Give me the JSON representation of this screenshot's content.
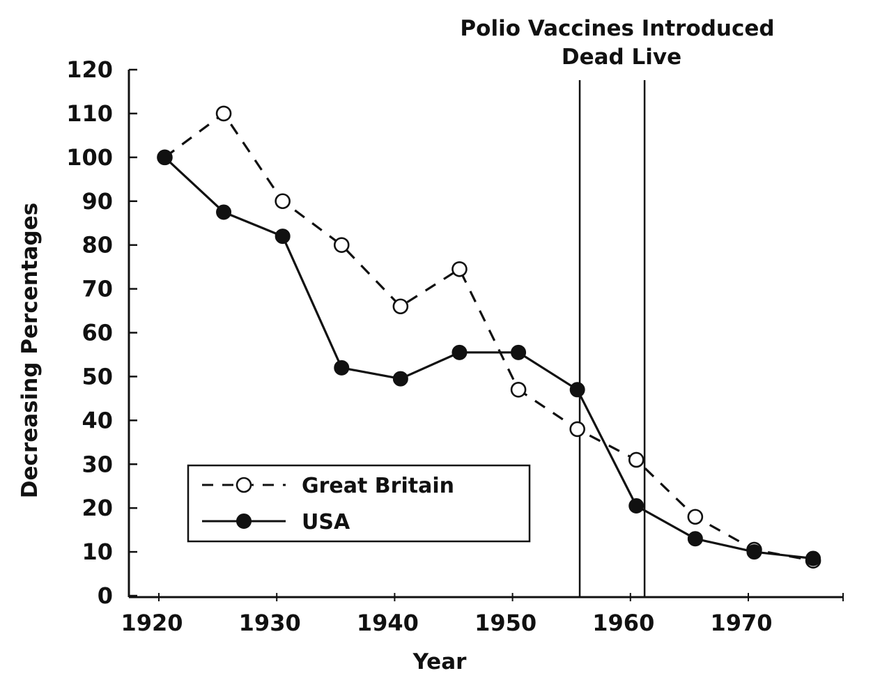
{
  "chart_data": {
    "type": "line",
    "title": "",
    "xlabel": "Year",
    "ylabel": "Decreasing Percentages",
    "xlim": [
      1920,
      1977
    ],
    "ylim": [
      0,
      120
    ],
    "x_ticks": [
      "1920",
      "1930",
      "1940",
      "1950",
      "1960",
      "1970"
    ],
    "y_ticks": [
      "0",
      "10",
      "20",
      "30",
      "40",
      "50",
      "60",
      "70",
      "80",
      "90",
      "100",
      "110",
      "120"
    ],
    "grid": false,
    "legend_position": "bottom-left",
    "annotation": {
      "title": "Polio Vaccines Introduced",
      "subtitle": "Dead Live",
      "lines": [
        {
          "label": "Dead",
          "x": 1955.7
        },
        {
          "label": "Live",
          "x": 1961.2
        }
      ]
    },
    "series": [
      {
        "name": "Great Britain",
        "style": "dashed",
        "marker": "open-circle",
        "color": "#111111",
        "points": [
          [
            1920.5,
            100
          ],
          [
            1925.5,
            110
          ],
          [
            1930.5,
            90
          ],
          [
            1935.5,
            80
          ],
          [
            1940.5,
            66
          ],
          [
            1945.5,
            74.5
          ],
          [
            1950.5,
            47
          ],
          [
            1955.5,
            38
          ],
          [
            1960.5,
            31
          ],
          [
            1965.5,
            18
          ],
          [
            1970.5,
            10.5
          ],
          [
            1975.5,
            8
          ]
        ]
      },
      {
        "name": "USA",
        "style": "solid",
        "marker": "filled-circle",
        "color": "#111111",
        "points": [
          [
            1920.5,
            100
          ],
          [
            1925.5,
            87.5
          ],
          [
            1930.5,
            82
          ],
          [
            1935.5,
            52
          ],
          [
            1940.5,
            49.5
          ],
          [
            1945.5,
            55.5
          ],
          [
            1950.5,
            55.5
          ],
          [
            1955.5,
            47
          ],
          [
            1960.5,
            20.5
          ],
          [
            1965.5,
            13
          ],
          [
            1970.5,
            10
          ],
          [
            1975.5,
            8.5
          ]
        ]
      }
    ]
  }
}
